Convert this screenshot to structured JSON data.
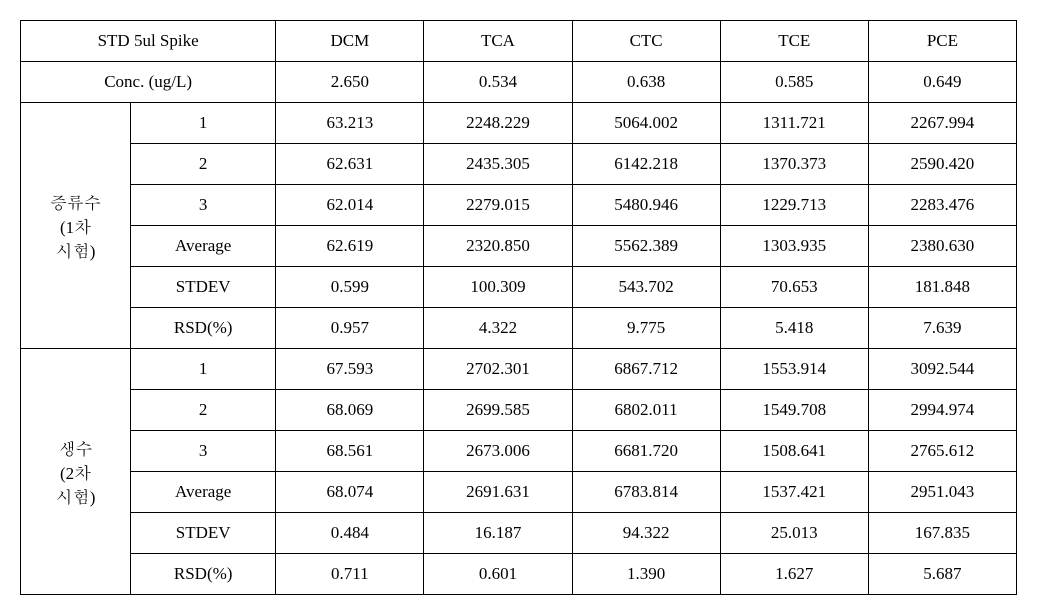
{
  "header": {
    "spike_label": "STD 5ul Spike",
    "compounds": [
      "DCM",
      "TCA",
      "CTC",
      "TCE",
      "PCE"
    ]
  },
  "conc": {
    "label": "Conc. (ug/L)",
    "values": [
      "2.650",
      "0.534",
      "0.638",
      "0.585",
      "0.649"
    ]
  },
  "groups": [
    {
      "title_line1": "증류수",
      "title_line2": "(1차",
      "title_line3": "시험)",
      "rows": [
        {
          "label": "1",
          "values": [
            "63.213",
            "2248.229",
            "5064.002",
            "1311.721",
            "2267.994"
          ]
        },
        {
          "label": "2",
          "values": [
            "62.631",
            "2435.305",
            "6142.218",
            "1370.373",
            "2590.420"
          ]
        },
        {
          "label": "3",
          "values": [
            "62.014",
            "2279.015",
            "5480.946",
            "1229.713",
            "2283.476"
          ]
        },
        {
          "label": "Average",
          "values": [
            "62.619",
            "2320.850",
            "5562.389",
            "1303.935",
            "2380.630"
          ]
        },
        {
          "label": "STDEV",
          "values": [
            "0.599",
            "100.309",
            "543.702",
            "70.653",
            "181.848"
          ]
        },
        {
          "label": "RSD(%)",
          "values": [
            "0.957",
            "4.322",
            "9.775",
            "5.418",
            "7.639"
          ]
        }
      ]
    },
    {
      "title_line1": "생수",
      "title_line2": "(2차",
      "title_line3": "시험)",
      "rows": [
        {
          "label": "1",
          "values": [
            "67.593",
            "2702.301",
            "6867.712",
            "1553.914",
            "3092.544"
          ]
        },
        {
          "label": "2",
          "values": [
            "68.069",
            "2699.585",
            "6802.011",
            "1549.708",
            "2994.974"
          ]
        },
        {
          "label": "3",
          "values": [
            "68.561",
            "2673.006",
            "6681.720",
            "1508.641",
            "2765.612"
          ]
        },
        {
          "label": "Average",
          "values": [
            "68.074",
            "2691.631",
            "6783.814",
            "1537.421",
            "2951.043"
          ]
        },
        {
          "label": "STDEV",
          "values": [
            "0.484",
            "16.187",
            "94.322",
            "25.013",
            "167.835"
          ]
        },
        {
          "label": "RSD(%)",
          "values": [
            "0.711",
            "0.601",
            "1.390",
            "1.627",
            "5.687"
          ]
        }
      ]
    }
  ]
}
